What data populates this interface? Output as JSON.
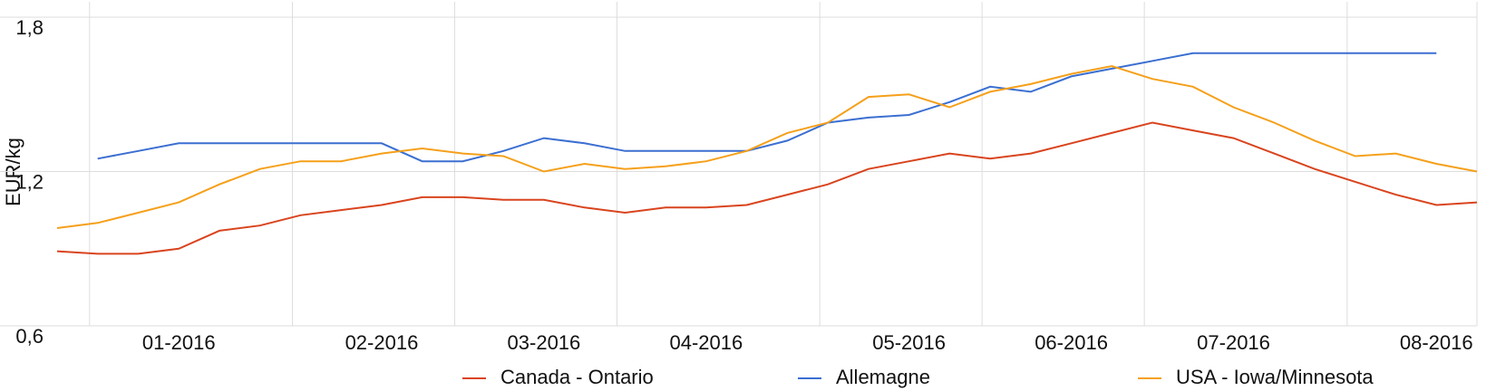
{
  "chart_data": {
    "type": "line",
    "y_label": "EUR/kg",
    "categories": [
      null,
      null,
      null,
      "01-2016",
      null,
      null,
      null,
      null,
      "02-2016",
      null,
      null,
      null,
      "03-2016",
      null,
      null,
      null,
      "04-2016",
      null,
      null,
      null,
      null,
      "05-2016",
      null,
      null,
      null,
      "06-2016",
      null,
      null,
      null,
      "07-2016",
      null,
      null,
      null,
      null,
      "08-2016",
      null
    ],
    "series": [
      {
        "name": "Canada - Ontario",
        "color": "#d9441e",
        "values": [
          0.89,
          0.88,
          0.88,
          0.9,
          0.97,
          0.99,
          1.03,
          1.05,
          1.07,
          1.1,
          1.1,
          1.09,
          1.09,
          1.06,
          1.04,
          1.06,
          1.06,
          1.07,
          1.11,
          1.15,
          1.21,
          1.24,
          1.27,
          1.25,
          1.27,
          1.31,
          1.35,
          1.39,
          1.36,
          1.33,
          1.27,
          1.21,
          1.16,
          1.11,
          1.07,
          1.08
        ]
      },
      {
        "name": "Allemagne",
        "color": "#3b6fd1",
        "values": [
          null,
          1.25,
          1.28,
          1.31,
          1.31,
          1.31,
          1.31,
          1.31,
          1.31,
          1.24,
          1.24,
          1.28,
          1.33,
          1.31,
          1.28,
          1.28,
          1.28,
          1.28,
          1.32,
          1.39,
          1.41,
          1.42,
          1.47,
          1.53,
          1.51,
          1.57,
          1.6,
          1.63,
          1.66,
          1.66,
          1.66,
          1.66,
          1.66,
          1.66,
          1.66,
          null
        ]
      },
      {
        "name": "USA - Iowa/Minnesota",
        "color": "#f5a01a",
        "values": [
          0.98,
          1.0,
          1.04,
          1.08,
          1.15,
          1.21,
          1.24,
          1.24,
          1.27,
          1.29,
          1.27,
          1.26,
          1.2,
          1.23,
          1.21,
          1.22,
          1.24,
          1.28,
          1.35,
          1.39,
          1.49,
          1.5,
          1.45,
          1.51,
          1.54,
          1.58,
          1.61,
          1.56,
          1.53,
          1.45,
          1.39,
          1.32,
          1.26,
          1.27,
          1.23,
          1.2
        ]
      }
    ],
    "ylim": [
      0.6,
      1.86
    ],
    "yticks": [
      {
        "value": 0.6,
        "label": "0,6"
      },
      {
        "value": 1.2,
        "label": "1,2"
      },
      {
        "value": 1.8,
        "label": "1,8"
      }
    ],
    "grid": true,
    "legend": "bottom"
  }
}
